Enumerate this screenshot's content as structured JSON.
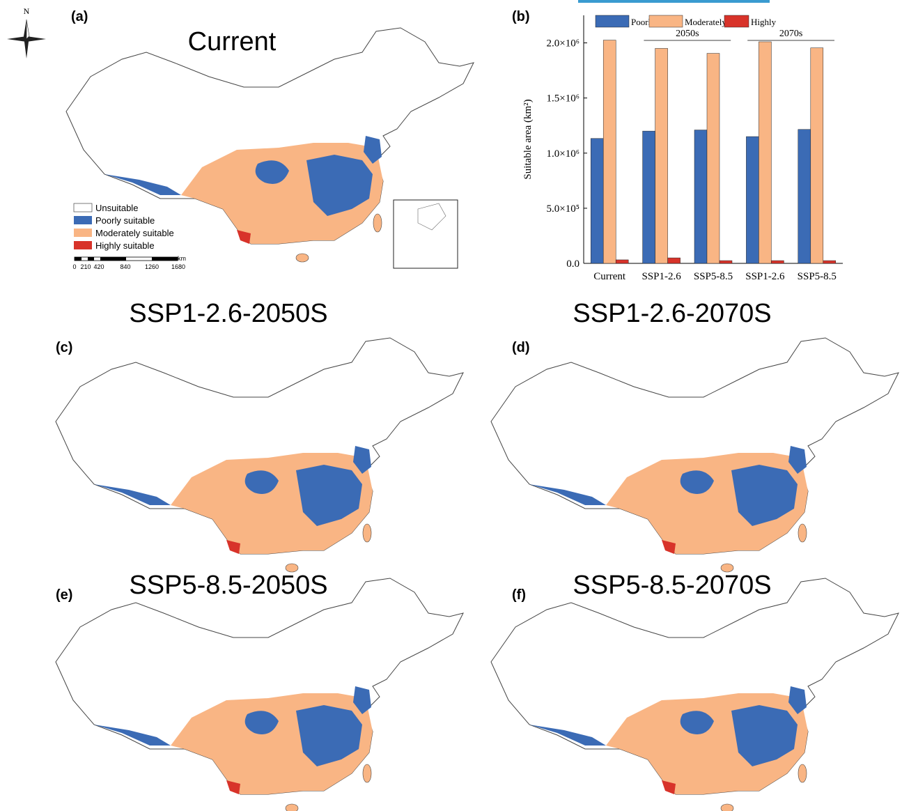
{
  "chart_data": {
    "type": "bar",
    "ylabel": "Suitable area (km²)",
    "categories": [
      "Current",
      "SSP1-2.6",
      "SSP5-8.5",
      "SSP1-2.6",
      "SSP5-8.5"
    ],
    "groups": [
      "2050s",
      "2070s"
    ],
    "series": [
      {
        "name": "Poorly",
        "color": "#3b6bb5",
        "values": [
          1133000,
          1200000,
          1210000,
          1150000,
          1215000
        ]
      },
      {
        "name": "Moderately",
        "color": "#f9b584",
        "values": [
          2025000,
          1950000,
          1905000,
          2010000,
          1955000
        ]
      },
      {
        "name": "Highly",
        "color": "#d8332a",
        "values": [
          32000,
          50000,
          25000,
          25000,
          25000
        ]
      }
    ],
    "ylim": [
      0,
      2250000
    ],
    "yticks": [
      {
        "value": 0,
        "label": "0.0"
      },
      {
        "value": 500000,
        "label": "5.0×10⁵"
      },
      {
        "value": 1000000,
        "label": "1.0×10⁶"
      },
      {
        "value": 1500000,
        "label": "1.5×10⁶"
      },
      {
        "value": 2000000,
        "label": "2.0×10⁶"
      }
    ]
  },
  "panels": [
    {
      "letter": "(a)",
      "title": "Current"
    },
    {
      "letter": "(b)"
    },
    {
      "letter": "(c)",
      "title": "SSP1-2.6-2050S"
    },
    {
      "letter": "(d)",
      "title": "SSP1-2.6-2070S"
    },
    {
      "letter": "(e)",
      "title": "SSP5-8.5-2050S"
    },
    {
      "letter": "(f)",
      "title": "SSP5-8.5-2070S"
    }
  ],
  "compass": "N",
  "map_legend": [
    "Unsuitable",
    "Poorly suitable",
    "Moderately suitable",
    "Highly suitable"
  ],
  "scale_bar": {
    "unit": "km",
    "labels": [
      "0",
      "210",
      "420",
      "840",
      "1260",
      "1680"
    ]
  }
}
